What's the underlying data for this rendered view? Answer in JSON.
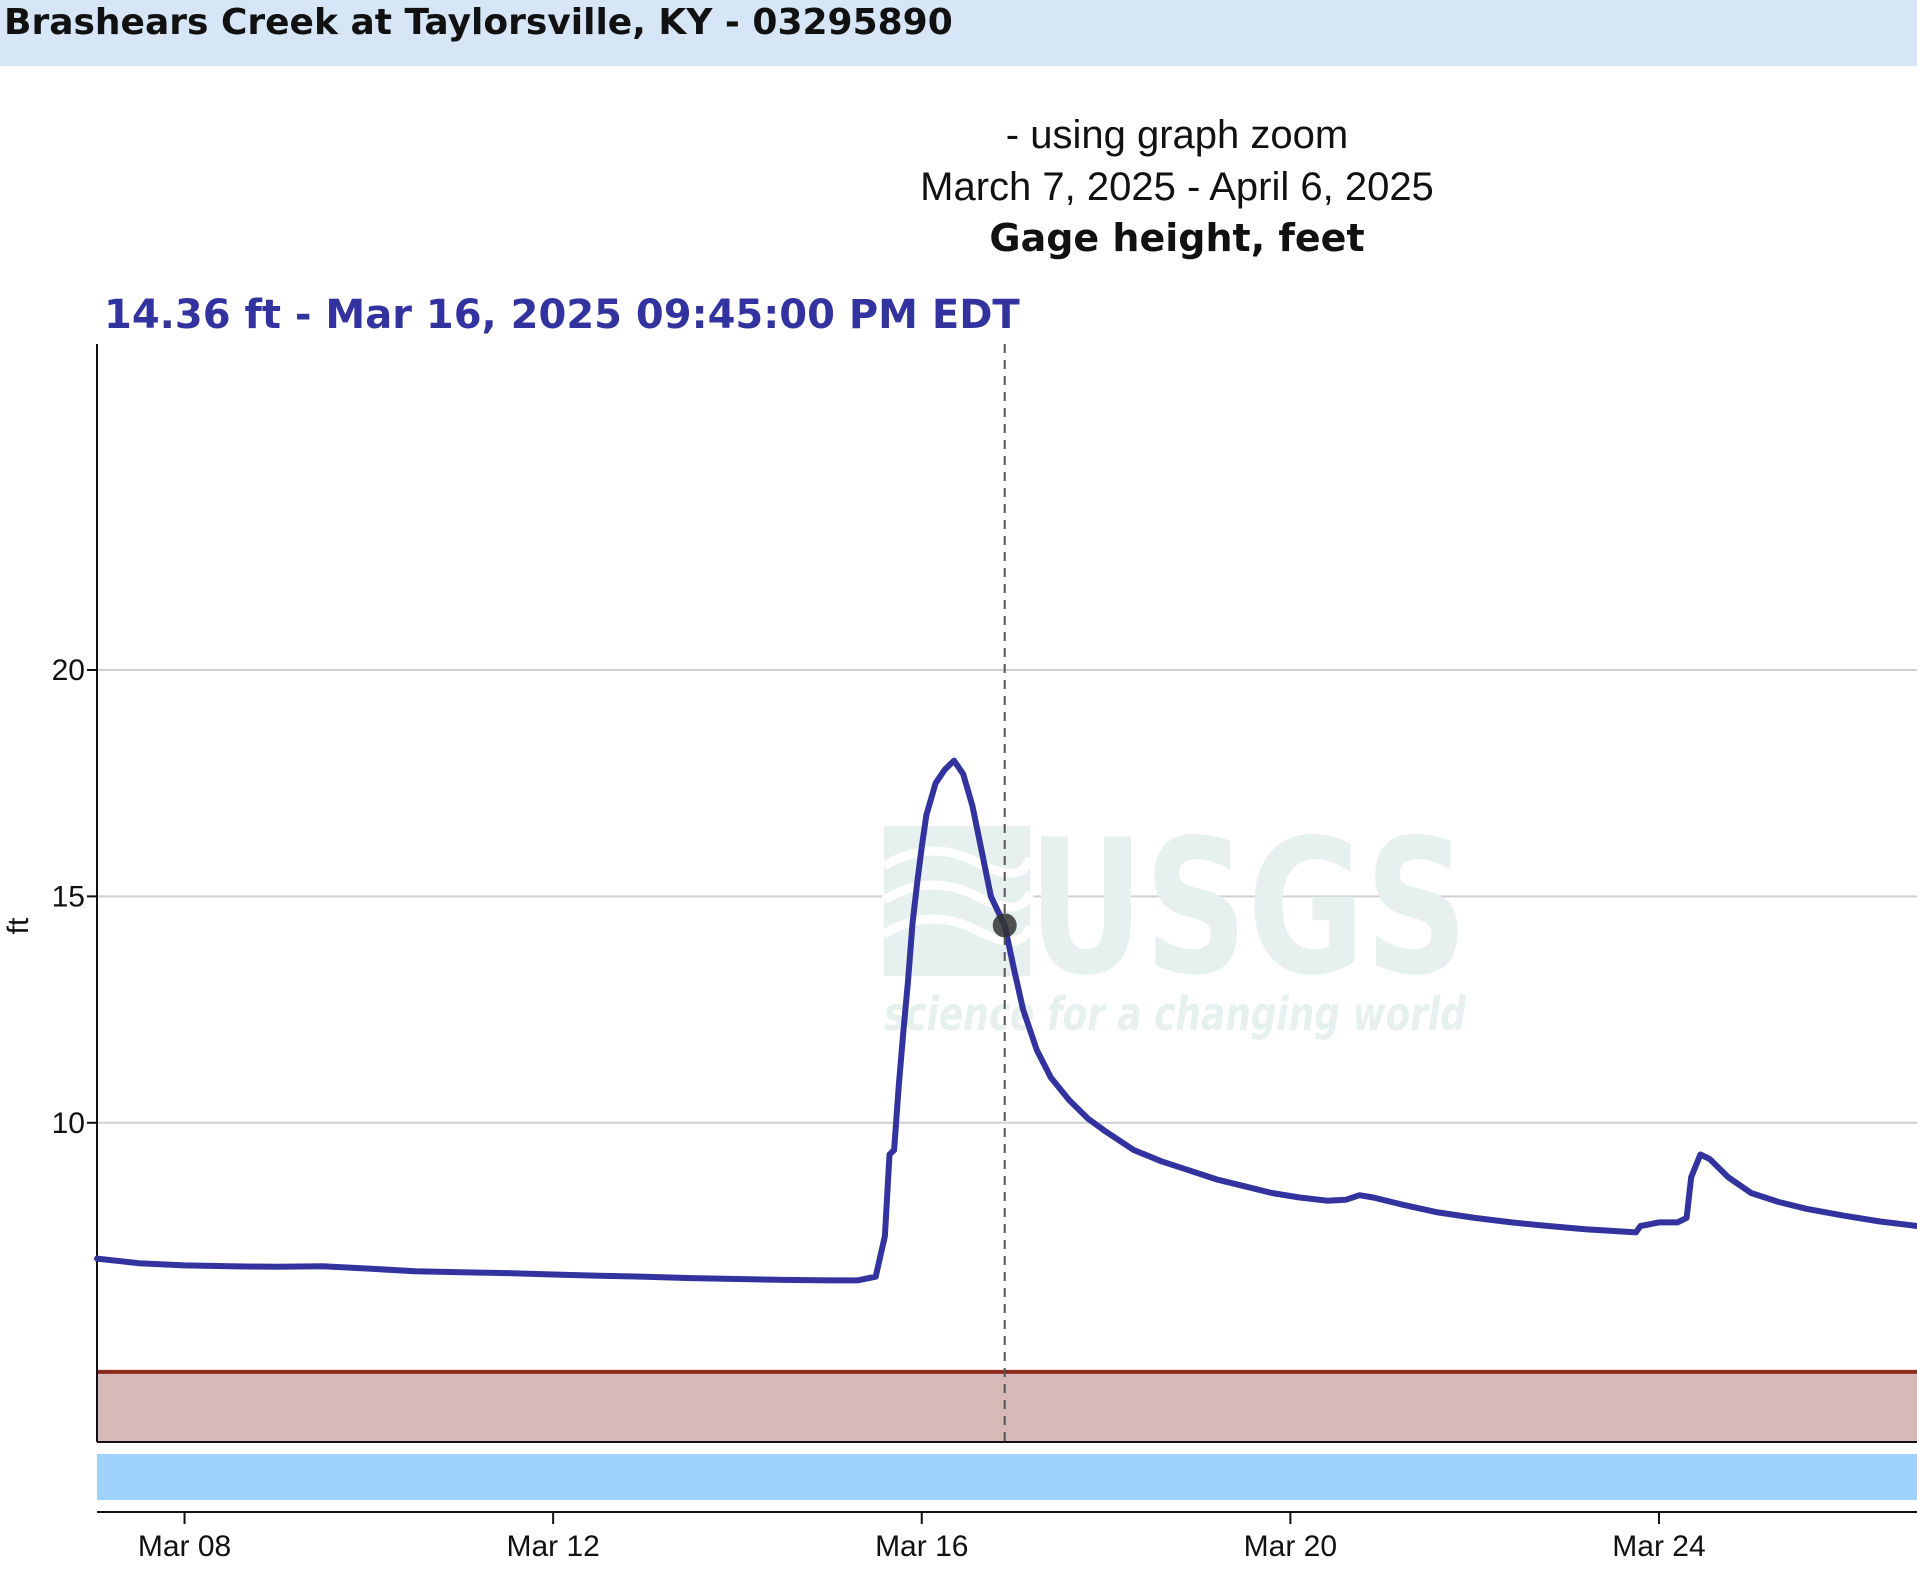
{
  "header": {
    "title": "Brashears Creek at Taylorsville, KY - 03295890"
  },
  "chart_header": {
    "zoom_note": "- using graph zoom",
    "date_range": "March 7, 2025 - April 6, 2025",
    "units_title": "Gage height, feet"
  },
  "readout": {
    "text": "14.36 ft - Mar 16, 2025 09:45:00 PM EDT",
    "value": 14.36
  },
  "watermark": {
    "logo": "USGS",
    "tagline": "science for a changing world"
  },
  "colors": {
    "series": "#3333a0",
    "threshold_line": "#8b2a1a",
    "threshold_fill": "#d7bab8",
    "bottom_band": "#9fd2fc",
    "watermark": "#e6f0ee",
    "header_bg": "#d6e6f6",
    "grid": "#d0d0d0"
  },
  "chart_data": {
    "type": "line",
    "title": "Gage height, feet",
    "ylabel": "ft",
    "xlabel": "",
    "x_ticks": [
      {
        "label": "Mar 08",
        "day": 8
      },
      {
        "label": "Mar 12",
        "day": 12
      },
      {
        "label": "Mar 16",
        "day": 16
      },
      {
        "label": "Mar 20",
        "day": 20
      },
      {
        "label": "Mar 24",
        "day": 24
      }
    ],
    "y_ticks": [
      10,
      15,
      20
    ],
    "xlim": [
      7.05,
      26.8
    ],
    "ylim": [
      2.95,
      27.2
    ],
    "grid": "horizontal",
    "threshold": 4.5,
    "cursor": {
      "x": 16.9,
      "y": 14.36
    },
    "series": [
      {
        "points": [
          [
            7.05,
            7.0
          ],
          [
            7.5,
            6.9
          ],
          [
            8.0,
            6.85
          ],
          [
            8.5,
            6.83
          ],
          [
            9.0,
            6.82
          ],
          [
            9.5,
            6.83
          ],
          [
            10.0,
            6.78
          ],
          [
            10.5,
            6.72
          ],
          [
            11.0,
            6.7
          ],
          [
            11.5,
            6.68
          ],
          [
            12.0,
            6.65
          ],
          [
            12.5,
            6.62
          ],
          [
            13.0,
            6.6
          ],
          [
            13.5,
            6.57
          ],
          [
            14.0,
            6.55
          ],
          [
            14.5,
            6.53
          ],
          [
            15.0,
            6.52
          ],
          [
            15.3,
            6.52
          ],
          [
            15.5,
            6.6
          ],
          [
            15.6,
            7.5
          ],
          [
            15.65,
            9.3
          ],
          [
            15.7,
            9.4
          ],
          [
            15.75,
            10.8
          ],
          [
            15.8,
            12.0
          ],
          [
            15.85,
            13.1
          ],
          [
            15.9,
            14.4
          ],
          [
            15.95,
            15.3
          ],
          [
            16.0,
            16.1
          ],
          [
            16.05,
            16.8
          ],
          [
            16.15,
            17.5
          ],
          [
            16.25,
            17.8
          ],
          [
            16.35,
            18.0
          ],
          [
            16.45,
            17.7
          ],
          [
            16.55,
            17.0
          ],
          [
            16.65,
            16.0
          ],
          [
            16.75,
            15.0
          ],
          [
            16.9,
            14.36
          ],
          [
            17.0,
            13.4
          ],
          [
            17.1,
            12.5
          ],
          [
            17.25,
            11.6
          ],
          [
            17.4,
            11.0
          ],
          [
            17.6,
            10.5
          ],
          [
            17.8,
            10.1
          ],
          [
            18.0,
            9.8
          ],
          [
            18.3,
            9.4
          ],
          [
            18.6,
            9.15
          ],
          [
            18.9,
            8.95
          ],
          [
            19.2,
            8.75
          ],
          [
            19.5,
            8.6
          ],
          [
            19.8,
            8.45
          ],
          [
            20.1,
            8.35
          ],
          [
            20.4,
            8.28
          ],
          [
            20.6,
            8.3
          ],
          [
            20.75,
            8.4
          ],
          [
            20.9,
            8.35
          ],
          [
            21.2,
            8.2
          ],
          [
            21.6,
            8.02
          ],
          [
            22.0,
            7.9
          ],
          [
            22.4,
            7.8
          ],
          [
            22.8,
            7.72
          ],
          [
            23.2,
            7.65
          ],
          [
            23.6,
            7.6
          ],
          [
            23.75,
            7.58
          ],
          [
            23.8,
            7.72
          ],
          [
            24.0,
            7.8
          ],
          [
            24.2,
            7.8
          ],
          [
            24.3,
            7.9
          ],
          [
            24.35,
            8.8
          ],
          [
            24.45,
            9.3
          ],
          [
            24.55,
            9.2
          ],
          [
            24.75,
            8.8
          ],
          [
            25.0,
            8.45
          ],
          [
            25.3,
            8.25
          ],
          [
            25.6,
            8.1
          ],
          [
            26.0,
            7.95
          ],
          [
            26.4,
            7.82
          ],
          [
            26.8,
            7.72
          ]
        ]
      }
    ]
  }
}
